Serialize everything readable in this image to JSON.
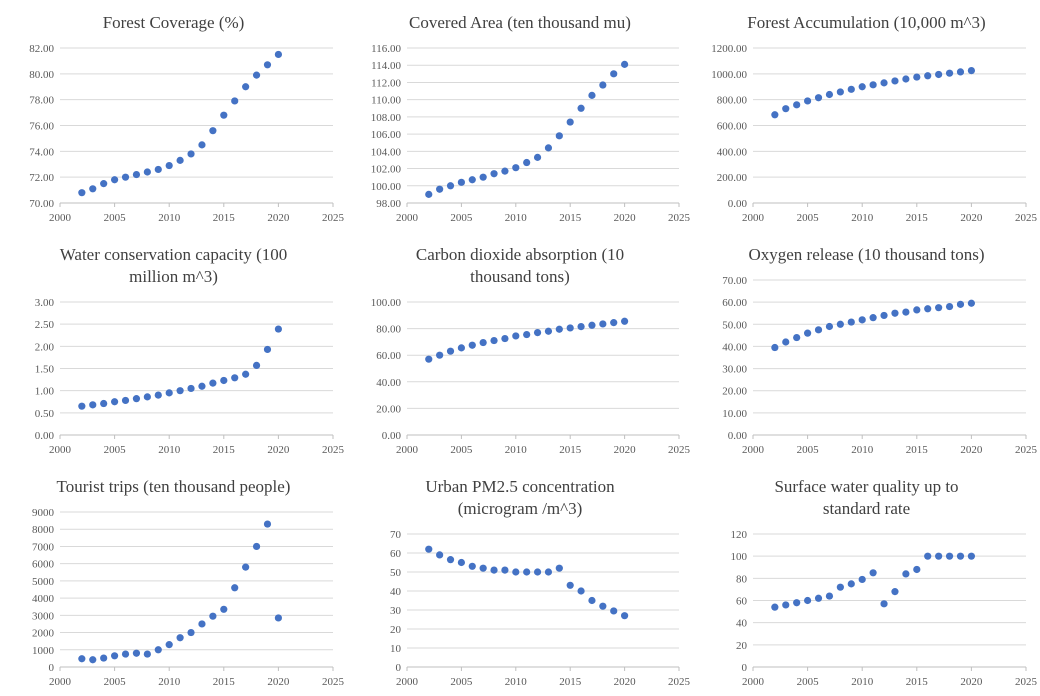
{
  "chart_data": [
    {
      "type": "scatter",
      "title": [
        "Forest Coverage (%)"
      ],
      "xlim": [
        2000,
        2025
      ],
      "xticks": [
        2000,
        2005,
        2010,
        2015,
        2020,
        2025
      ],
      "xtick_labels": [
        "2000",
        "2005",
        "2010",
        "2015",
        "2020",
        "2025"
      ],
      "ylim": [
        70,
        82
      ],
      "yticks": [
        70,
        72,
        74,
        76,
        78,
        80,
        82
      ],
      "ytick_labels": [
        "70.00",
        "72.00",
        "74.00",
        "76.00",
        "78.00",
        "80.00",
        "82.00"
      ],
      "grid": true,
      "color": "#4472c4",
      "x": [
        2002,
        2003,
        2004,
        2005,
        2006,
        2007,
        2008,
        2009,
        2010,
        2011,
        2012,
        2013,
        2014,
        2015,
        2016,
        2017,
        2018,
        2019,
        2020
      ],
      "y": [
        70.8,
        71.1,
        71.5,
        71.8,
        72.0,
        72.2,
        72.4,
        72.6,
        72.9,
        73.3,
        73.8,
        74.5,
        75.6,
        76.8,
        77.9,
        79.0,
        79.9,
        80.7,
        81.5
      ]
    },
    {
      "type": "scatter",
      "title": [
        "Covered Area (ten thousand mu)"
      ],
      "xlim": [
        2000,
        2025
      ],
      "xticks": [
        2000,
        2005,
        2010,
        2015,
        2020,
        2025
      ],
      "xtick_labels": [
        "2000",
        "2005",
        "2010",
        "2015",
        "2020",
        "2025"
      ],
      "ylim": [
        98,
        116
      ],
      "yticks": [
        98,
        100,
        102,
        104,
        106,
        108,
        110,
        112,
        114,
        116
      ],
      "ytick_labels": [
        "98.00",
        "100.00",
        "102.00",
        "104.00",
        "106.00",
        "108.00",
        "110.00",
        "112.00",
        "114.00",
        "116.00"
      ],
      "grid": true,
      "color": "#4472c4",
      "x": [
        2002,
        2003,
        2004,
        2005,
        2006,
        2007,
        2008,
        2009,
        2010,
        2011,
        2012,
        2013,
        2014,
        2015,
        2016,
        2017,
        2018,
        2019,
        2020
      ],
      "y": [
        99.0,
        99.6,
        100.0,
        100.4,
        100.7,
        101.0,
        101.4,
        101.7,
        102.1,
        102.7,
        103.3,
        104.4,
        105.8,
        107.4,
        109.0,
        110.5,
        111.7,
        113.0,
        114.1
      ]
    },
    {
      "type": "scatter",
      "title": [
        "Forest Accumulation (10,000 m^3)"
      ],
      "xlim": [
        2000,
        2025
      ],
      "xticks": [
        2000,
        2005,
        2010,
        2015,
        2020,
        2025
      ],
      "xtick_labels": [
        "2000",
        "2005",
        "2010",
        "2015",
        "2020",
        "2025"
      ],
      "ylim": [
        0,
        1200
      ],
      "yticks": [
        0,
        200,
        400,
        600,
        800,
        1000,
        1200
      ],
      "ytick_labels": [
        "0.00",
        "200.00",
        "400.00",
        "600.00",
        "800.00",
        "1000.00",
        "1200.00"
      ],
      "grid": true,
      "color": "#4472c4",
      "x": [
        2002,
        2003,
        2004,
        2005,
        2006,
        2007,
        2008,
        2009,
        2010,
        2011,
        2012,
        2013,
        2014,
        2015,
        2016,
        2017,
        2018,
        2019,
        2020
      ],
      "y": [
        683,
        730,
        760,
        790,
        815,
        840,
        860,
        880,
        900,
        915,
        930,
        945,
        960,
        975,
        985,
        995,
        1005,
        1015,
        1025
      ]
    },
    {
      "type": "scatter",
      "title": [
        "Water conservation capacity (100",
        "million m^3)"
      ],
      "xlim": [
        2000,
        2025
      ],
      "xticks": [
        2000,
        2005,
        2010,
        2015,
        2020,
        2025
      ],
      "xtick_labels": [
        "2000",
        "2005",
        "2010",
        "2015",
        "2020",
        "2025"
      ],
      "ylim": [
        0,
        3
      ],
      "yticks": [
        0,
        0.5,
        1,
        1.5,
        2,
        2.5,
        3
      ],
      "ytick_labels": [
        "0.00",
        "0.50",
        "1.00",
        "1.50",
        "2.00",
        "2.50",
        "3.00"
      ],
      "grid": true,
      "color": "#4472c4",
      "x": [
        2002,
        2003,
        2004,
        2005,
        2006,
        2007,
        2008,
        2009,
        2010,
        2011,
        2012,
        2013,
        2014,
        2015,
        2016,
        2017,
        2018,
        2019,
        2020
      ],
      "y": [
        0.65,
        0.68,
        0.71,
        0.75,
        0.78,
        0.82,
        0.86,
        0.9,
        0.95,
        1.0,
        1.05,
        1.1,
        1.17,
        1.23,
        1.29,
        1.37,
        1.57,
        1.93,
        2.39
      ]
    },
    {
      "type": "scatter",
      "title": [
        "Carbon dioxide absorption (10",
        "thousand tons)"
      ],
      "xlim": [
        2000,
        2025
      ],
      "xticks": [
        2000,
        2005,
        2010,
        2015,
        2020,
        2025
      ],
      "xtick_labels": [
        "2000",
        "2005",
        "2010",
        "2015",
        "2020",
        "2025"
      ],
      "ylim": [
        0,
        100
      ],
      "yticks": [
        0,
        20,
        40,
        60,
        80,
        100
      ],
      "ytick_labels": [
        "0.00",
        "20.00",
        "40.00",
        "60.00",
        "80.00",
        "100.00"
      ],
      "grid": true,
      "color": "#4472c4",
      "x": [
        2002,
        2003,
        2004,
        2005,
        2006,
        2007,
        2008,
        2009,
        2010,
        2011,
        2012,
        2013,
        2014,
        2015,
        2016,
        2017,
        2018,
        2019,
        2020
      ],
      "y": [
        57,
        60,
        63,
        65.5,
        67.5,
        69.5,
        71,
        72.5,
        74.5,
        75.5,
        77,
        78,
        79.5,
        80.5,
        81.5,
        82.5,
        83.5,
        84.5,
        85.5
      ]
    },
    {
      "type": "scatter",
      "title": [
        "Oxygen release (10 thousand tons)"
      ],
      "xlim": [
        2000,
        2025
      ],
      "xticks": [
        2000,
        2005,
        2010,
        2015,
        2020,
        2025
      ],
      "xtick_labels": [
        "2000",
        "2005",
        "2010",
        "2015",
        "2020",
        "2025"
      ],
      "ylim": [
        0,
        70
      ],
      "yticks": [
        0,
        10,
        20,
        30,
        40,
        50,
        60,
        70
      ],
      "ytick_labels": [
        "0.00",
        "10.00",
        "20.00",
        "30.00",
        "40.00",
        "50.00",
        "60.00",
        "70.00"
      ],
      "grid": true,
      "color": "#4472c4",
      "x": [
        2002,
        2003,
        2004,
        2005,
        2006,
        2007,
        2008,
        2009,
        2010,
        2011,
        2012,
        2013,
        2014,
        2015,
        2016,
        2017,
        2018,
        2019,
        2020
      ],
      "y": [
        39.5,
        42,
        44,
        46,
        47.5,
        49,
        50,
        51,
        52,
        53,
        54,
        55,
        55.5,
        56.5,
        57,
        57.5,
        58,
        59,
        59.5
      ]
    },
    {
      "type": "scatter",
      "title": [
        "Tourist trips (ten thousand people)"
      ],
      "xlim": [
        2000,
        2025
      ],
      "xticks": [
        2000,
        2005,
        2010,
        2015,
        2020,
        2025
      ],
      "xtick_labels": [
        "2000",
        "2005",
        "2010",
        "2015",
        "2020",
        "2025"
      ],
      "ylim": [
        0,
        9000
      ],
      "yticks": [
        0,
        1000,
        2000,
        3000,
        4000,
        5000,
        6000,
        7000,
        8000,
        9000
      ],
      "ytick_labels": [
        "0",
        "1000",
        "2000",
        "3000",
        "4000",
        "5000",
        "6000",
        "7000",
        "8000",
        "9000"
      ],
      "grid": true,
      "color": "#4472c4",
      "x": [
        2002,
        2003,
        2004,
        2005,
        2006,
        2007,
        2008,
        2009,
        2010,
        2011,
        2012,
        2013,
        2014,
        2015,
        2016,
        2017,
        2018,
        2019,
        2020
      ],
      "y": [
        480,
        420,
        520,
        650,
        750,
        800,
        750,
        1000,
        1300,
        1700,
        2000,
        2500,
        2950,
        3350,
        4600,
        5800,
        7000,
        8300,
        2850
      ]
    },
    {
      "type": "scatter",
      "title": [
        "Urban PM2.5 concentration",
        "(microgram /m^3)"
      ],
      "xlim": [
        2000,
        2025
      ],
      "xticks": [
        2000,
        2005,
        2010,
        2015,
        2020,
        2025
      ],
      "xtick_labels": [
        "2000",
        "2005",
        "2010",
        "2015",
        "2020",
        "2025"
      ],
      "ylim": [
        0,
        70
      ],
      "yticks": [
        0,
        10,
        20,
        30,
        40,
        50,
        60,
        70
      ],
      "ytick_labels": [
        "0",
        "10",
        "20",
        "30",
        "40",
        "50",
        "60",
        "70"
      ],
      "grid": true,
      "color": "#4472c4",
      "x": [
        2002,
        2003,
        2004,
        2005,
        2006,
        2007,
        2008,
        2009,
        2010,
        2011,
        2012,
        2013,
        2014,
        2015,
        2016,
        2017,
        2018,
        2019,
        2020
      ],
      "y": [
        62,
        59,
        56.5,
        55,
        53,
        52,
        51,
        51,
        50,
        50,
        50,
        50,
        52,
        43,
        40,
        35,
        32,
        29.5,
        27
      ]
    },
    {
      "type": "scatter",
      "title": [
        "Surface water quality up to",
        "standard rate"
      ],
      "xlim": [
        2000,
        2025
      ],
      "xticks": [
        2000,
        2005,
        2010,
        2015,
        2020,
        2025
      ],
      "xtick_labels": [
        "2000",
        "2005",
        "2010",
        "2015",
        "2020",
        "2025"
      ],
      "ylim": [
        0,
        120
      ],
      "yticks": [
        0,
        20,
        40,
        60,
        80,
        100,
        120
      ],
      "ytick_labels": [
        "0",
        "20",
        "40",
        "60",
        "80",
        "100",
        "120"
      ],
      "grid": true,
      "color": "#4472c4",
      "x": [
        2002,
        2003,
        2004,
        2005,
        2006,
        2007,
        2008,
        2009,
        2010,
        2011,
        2012,
        2013,
        2014,
        2015,
        2016,
        2017,
        2018,
        2019,
        2020
      ],
      "y": [
        54,
        56,
        58,
        60,
        62,
        64,
        72,
        75,
        79,
        85,
        57,
        68,
        84,
        88,
        100,
        100,
        100,
        100,
        100
      ]
    }
  ]
}
